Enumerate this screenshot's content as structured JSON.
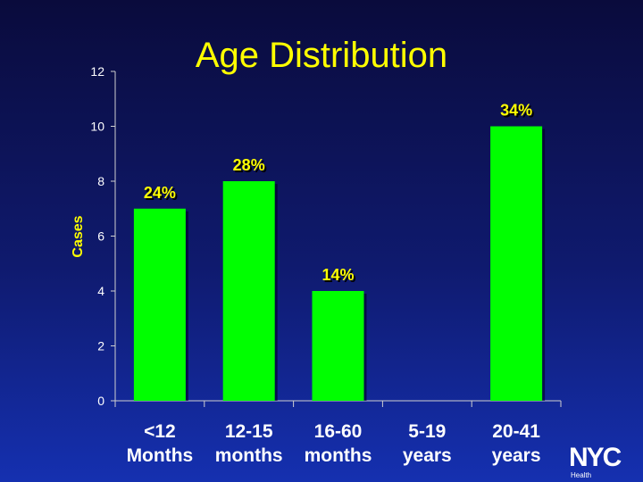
{
  "chart_data": {
    "type": "bar",
    "title": "Age Distribution",
    "ylabel": "Cases",
    "xlabel": "",
    "ylim": [
      0,
      12
    ],
    "yticks": [
      0,
      2,
      4,
      6,
      8,
      10,
      12
    ],
    "categories": [
      [
        "<12",
        "Months"
      ],
      [
        "12-15",
        "months"
      ],
      [
        "16-60",
        "months"
      ],
      [
        "5-19",
        "years"
      ],
      [
        "20-41",
        "years"
      ]
    ],
    "values": [
      7,
      8,
      4,
      0,
      10
    ],
    "data_labels": [
      "24%",
      "28%",
      "14%",
      "",
      "34%"
    ],
    "bar_color": "#00ff00",
    "grid": false,
    "legend": "none"
  },
  "logo": {
    "word": "NYC",
    "sub": "Health"
  },
  "colors": {
    "title": "#ffff00",
    "text": "#ffffff",
    "bar": "#00ff00"
  }
}
